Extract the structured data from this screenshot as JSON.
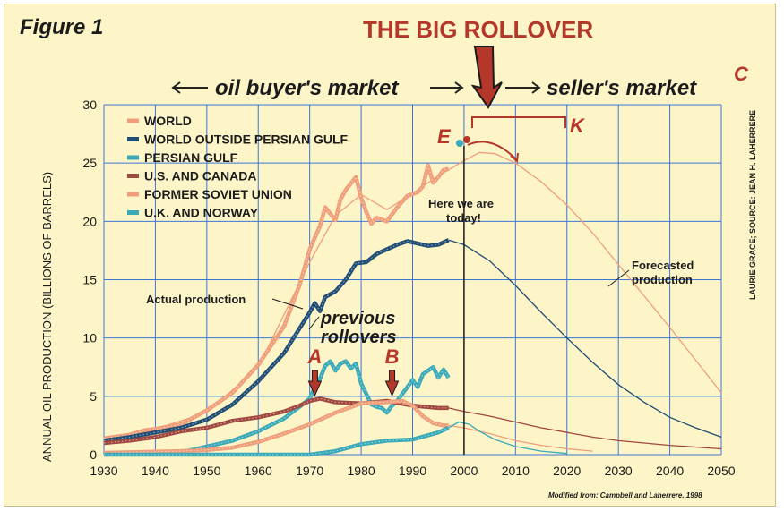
{
  "colors": {
    "background": "#fdf5c8",
    "grid": "#3b76d6",
    "world": "#ef9e79",
    "world_outside_gulf": "#1f4d73",
    "persian_gulf": "#3aa9b8",
    "us_canada": "#a0483f",
    "former_soviet_union": "#ef9e79",
    "uk_norway": "#3aa9b8",
    "accent_red": "#b5372a"
  },
  "figure_label": "Figure 1",
  "headline": "THE BIG ROLLOVER",
  "buyer_market": "oil buyer's market",
  "seller_market": "seller's market",
  "source_note": "LAURIE GRACE; SOURCE: JEAN H. LAHERRERE",
  "footer_note": "Modified from: Campbell and Laherrere, 1998",
  "chart_data": {
    "type": "line",
    "xlabel": "",
    "ylabel": "ANNUAL OIL PRODUCTION (BILLIONS OF BARRELS)",
    "xlim": [
      1930,
      2050
    ],
    "ylim": [
      0,
      30
    ],
    "x_ticks": [
      "1930",
      "1940",
      "1950",
      "1960",
      "1970",
      "1980",
      "1990",
      "2000",
      "2010",
      "2020",
      "2030",
      "2040",
      "2050"
    ],
    "y_ticks": [
      "0",
      "5",
      "10",
      "15",
      "20",
      "25",
      "30"
    ],
    "grid": true,
    "legend_position": "top-left",
    "series": [
      {
        "name": "WORLD",
        "style": "actual",
        "color_key": "world",
        "points": [
          [
            1930,
            1.4
          ],
          [
            1935,
            1.7
          ],
          [
            1938,
            2.1
          ],
          [
            1940,
            2.2
          ],
          [
            1945,
            2.6
          ],
          [
            1950,
            3.8
          ],
          [
            1955,
            5.3
          ],
          [
            1960,
            7.7
          ],
          [
            1965,
            11.0
          ],
          [
            1968,
            14.5
          ],
          [
            1970,
            17.6
          ],
          [
            1972,
            19.6
          ],
          [
            1973,
            21.2
          ],
          [
            1975,
            20.1
          ],
          [
            1976,
            21.9
          ],
          [
            1977,
            22.7
          ],
          [
            1979,
            23.8
          ],
          [
            1980,
            22.0
          ],
          [
            1981,
            20.8
          ],
          [
            1982,
            19.8
          ],
          [
            1983,
            20.3
          ],
          [
            1985,
            20.0
          ],
          [
            1987,
            21.2
          ],
          [
            1989,
            22.2
          ],
          [
            1991,
            22.5
          ],
          [
            1992,
            23.0
          ],
          [
            1993,
            24.8
          ],
          [
            1994,
            23.3
          ],
          [
            1995,
            23.8
          ],
          [
            1996,
            24.4
          ],
          [
            1997,
            24.5
          ]
        ]
      },
      {
        "name": "WORLD OUTSIDE PERSIAN GULF",
        "style": "actual",
        "color_key": "world_outside_gulf",
        "points": [
          [
            1930,
            1.2
          ],
          [
            1935,
            1.5
          ],
          [
            1940,
            1.9
          ],
          [
            1945,
            2.3
          ],
          [
            1950,
            3.0
          ],
          [
            1955,
            4.3
          ],
          [
            1960,
            6.3
          ],
          [
            1965,
            8.7
          ],
          [
            1968,
            10.8
          ],
          [
            1970,
            12.2
          ],
          [
            1971,
            13.0
          ],
          [
            1972,
            12.3
          ],
          [
            1973,
            13.5
          ],
          [
            1975,
            14.0
          ],
          [
            1977,
            15.0
          ],
          [
            1979,
            16.4
          ],
          [
            1981,
            16.5
          ],
          [
            1983,
            17.2
          ],
          [
            1985,
            17.6
          ],
          [
            1987,
            18.0
          ],
          [
            1989,
            18.3
          ],
          [
            1991,
            18.1
          ],
          [
            1993,
            17.9
          ],
          [
            1995,
            18.0
          ],
          [
            1997,
            18.4
          ]
        ]
      },
      {
        "name": "PERSIAN GULF",
        "style": "actual",
        "color_key": "persian_gulf",
        "points": [
          [
            1930,
            0.05
          ],
          [
            1940,
            0.1
          ],
          [
            1945,
            0.2
          ],
          [
            1950,
            0.7
          ],
          [
            1955,
            1.2
          ],
          [
            1960,
            2.0
          ],
          [
            1965,
            3.1
          ],
          [
            1968,
            4.1
          ],
          [
            1970,
            4.8
          ],
          [
            1971,
            5.8
          ],
          [
            1972,
            6.5
          ],
          [
            1973,
            7.6
          ],
          [
            1974,
            8.0
          ],
          [
            1975,
            7.2
          ],
          [
            1976,
            7.8
          ],
          [
            1977,
            8.0
          ],
          [
            1978,
            7.4
          ],
          [
            1979,
            7.8
          ],
          [
            1980,
            6.1
          ],
          [
            1981,
            5.2
          ],
          [
            1982,
            4.3
          ],
          [
            1983,
            4.1
          ],
          [
            1984,
            4.0
          ],
          [
            1985,
            3.6
          ],
          [
            1986,
            4.2
          ],
          [
            1987,
            4.6
          ],
          [
            1988,
            5.2
          ],
          [
            1989,
            5.8
          ],
          [
            1990,
            6.4
          ],
          [
            1991,
            5.8
          ],
          [
            1992,
            6.9
          ],
          [
            1993,
            7.2
          ],
          [
            1994,
            7.5
          ],
          [
            1995,
            6.6
          ],
          [
            1996,
            7.3
          ],
          [
            1997,
            6.6
          ]
        ]
      },
      {
        "name": "U.S. AND CANADA",
        "style": "actual",
        "color_key": "us_canada",
        "points": [
          [
            1930,
            1.0
          ],
          [
            1935,
            1.2
          ],
          [
            1940,
            1.5
          ],
          [
            1945,
            2.0
          ],
          [
            1950,
            2.3
          ],
          [
            1955,
            2.9
          ],
          [
            1960,
            3.2
          ],
          [
            1965,
            3.7
          ],
          [
            1968,
            4.2
          ],
          [
            1970,
            4.6
          ],
          [
            1972,
            4.8
          ],
          [
            1975,
            4.5
          ],
          [
            1980,
            4.4
          ],
          [
            1985,
            4.6
          ],
          [
            1990,
            4.2
          ],
          [
            1995,
            4.0
          ],
          [
            1997,
            4.0
          ]
        ]
      },
      {
        "name": "FORMER SOVIET UNION",
        "style": "actual",
        "color_key": "former_soviet_union",
        "points": [
          [
            1930,
            0.15
          ],
          [
            1940,
            0.25
          ],
          [
            1945,
            0.3
          ],
          [
            1950,
            0.4
          ],
          [
            1955,
            0.6
          ],
          [
            1960,
            1.1
          ],
          [
            1965,
            1.8
          ],
          [
            1970,
            2.6
          ],
          [
            1975,
            3.6
          ],
          [
            1980,
            4.4
          ],
          [
            1985,
            4.5
          ],
          [
            1988,
            4.6
          ],
          [
            1990,
            4.2
          ],
          [
            1992,
            3.3
          ],
          [
            1994,
            2.7
          ],
          [
            1996,
            2.5
          ],
          [
            1997,
            2.5
          ]
        ]
      },
      {
        "name": "U.K. AND NORWAY",
        "style": "actual",
        "color_key": "uk_norway",
        "points": [
          [
            1930,
            0.0
          ],
          [
            1970,
            0.0
          ],
          [
            1975,
            0.3
          ],
          [
            1980,
            0.9
          ],
          [
            1985,
            1.2
          ],
          [
            1990,
            1.3
          ],
          [
            1995,
            1.9
          ],
          [
            1997,
            2.3
          ]
        ]
      },
      {
        "name": "",
        "style": "forecast",
        "color_key": "world",
        "points": [
          [
            1930,
            1.4
          ],
          [
            1940,
            2.2
          ],
          [
            1950,
            3.6
          ],
          [
            1960,
            7.5
          ],
          [
            1970,
            16.5
          ],
          [
            1975,
            20.5
          ],
          [
            1980,
            22.3
          ],
          [
            1985,
            21.0
          ],
          [
            1990,
            22.4
          ],
          [
            1995,
            23.9
          ],
          [
            2000,
            25.2
          ],
          [
            2003,
            25.9
          ],
          [
            2006,
            25.8
          ],
          [
            2010,
            25.0
          ],
          [
            2015,
            23.4
          ],
          [
            2020,
            21.4
          ],
          [
            2025,
            19.0
          ],
          [
            2030,
            16.3
          ],
          [
            2035,
            13.6
          ],
          [
            2040,
            10.9
          ],
          [
            2045,
            8.1
          ],
          [
            2050,
            5.3
          ]
        ]
      },
      {
        "name": "",
        "style": "forecast",
        "color_key": "world_outside_gulf",
        "points": [
          [
            1997,
            18.4
          ],
          [
            2000,
            18.0
          ],
          [
            2005,
            16.6
          ],
          [
            2010,
            14.5
          ],
          [
            2015,
            12.2
          ],
          [
            2020,
            10.0
          ],
          [
            2025,
            7.9
          ],
          [
            2030,
            6.0
          ],
          [
            2035,
            4.5
          ],
          [
            2040,
            3.2
          ],
          [
            2045,
            2.3
          ],
          [
            2050,
            1.5
          ]
        ]
      },
      {
        "name": "",
        "style": "forecast",
        "color_key": "us_canada",
        "points": [
          [
            1997,
            4.0
          ],
          [
            2000,
            3.7
          ],
          [
            2005,
            3.3
          ],
          [
            2010,
            2.8
          ],
          [
            2015,
            2.3
          ],
          [
            2020,
            1.9
          ],
          [
            2025,
            1.5
          ],
          [
            2030,
            1.2
          ],
          [
            2040,
            0.8
          ],
          [
            2050,
            0.5
          ]
        ]
      },
      {
        "name": "",
        "style": "forecast",
        "color_key": "former_soviet_union",
        "points": [
          [
            1997,
            2.5
          ],
          [
            2000,
            2.3
          ],
          [
            2005,
            1.8
          ],
          [
            2010,
            1.2
          ],
          [
            2015,
            0.8
          ],
          [
            2020,
            0.5
          ],
          [
            2025,
            0.3
          ]
        ]
      },
      {
        "name": "",
        "style": "forecast",
        "color_key": "uk_norway",
        "points": [
          [
            1997,
            2.3
          ],
          [
            1999,
            2.8
          ],
          [
            2001,
            2.6
          ],
          [
            2003,
            2.0
          ],
          [
            2006,
            1.3
          ],
          [
            2010,
            0.7
          ],
          [
            2015,
            0.3
          ],
          [
            2020,
            0.1
          ]
        ]
      }
    ],
    "annotations": {
      "label_a": "A",
      "label_b": "B",
      "label_c": "C",
      "label_e": "E",
      "label_k": "K",
      "here_line1": "Here we are",
      "here_line2": "today!",
      "here_year": 2000,
      "actual_production": "Actual production",
      "forecasted_line1": "Forecasted",
      "forecasted_line2": "production",
      "previous_line1": "previous",
      "previous_line2": "rollovers",
      "rollover_a_year": 1971,
      "rollover_b_year": 1986
    }
  }
}
